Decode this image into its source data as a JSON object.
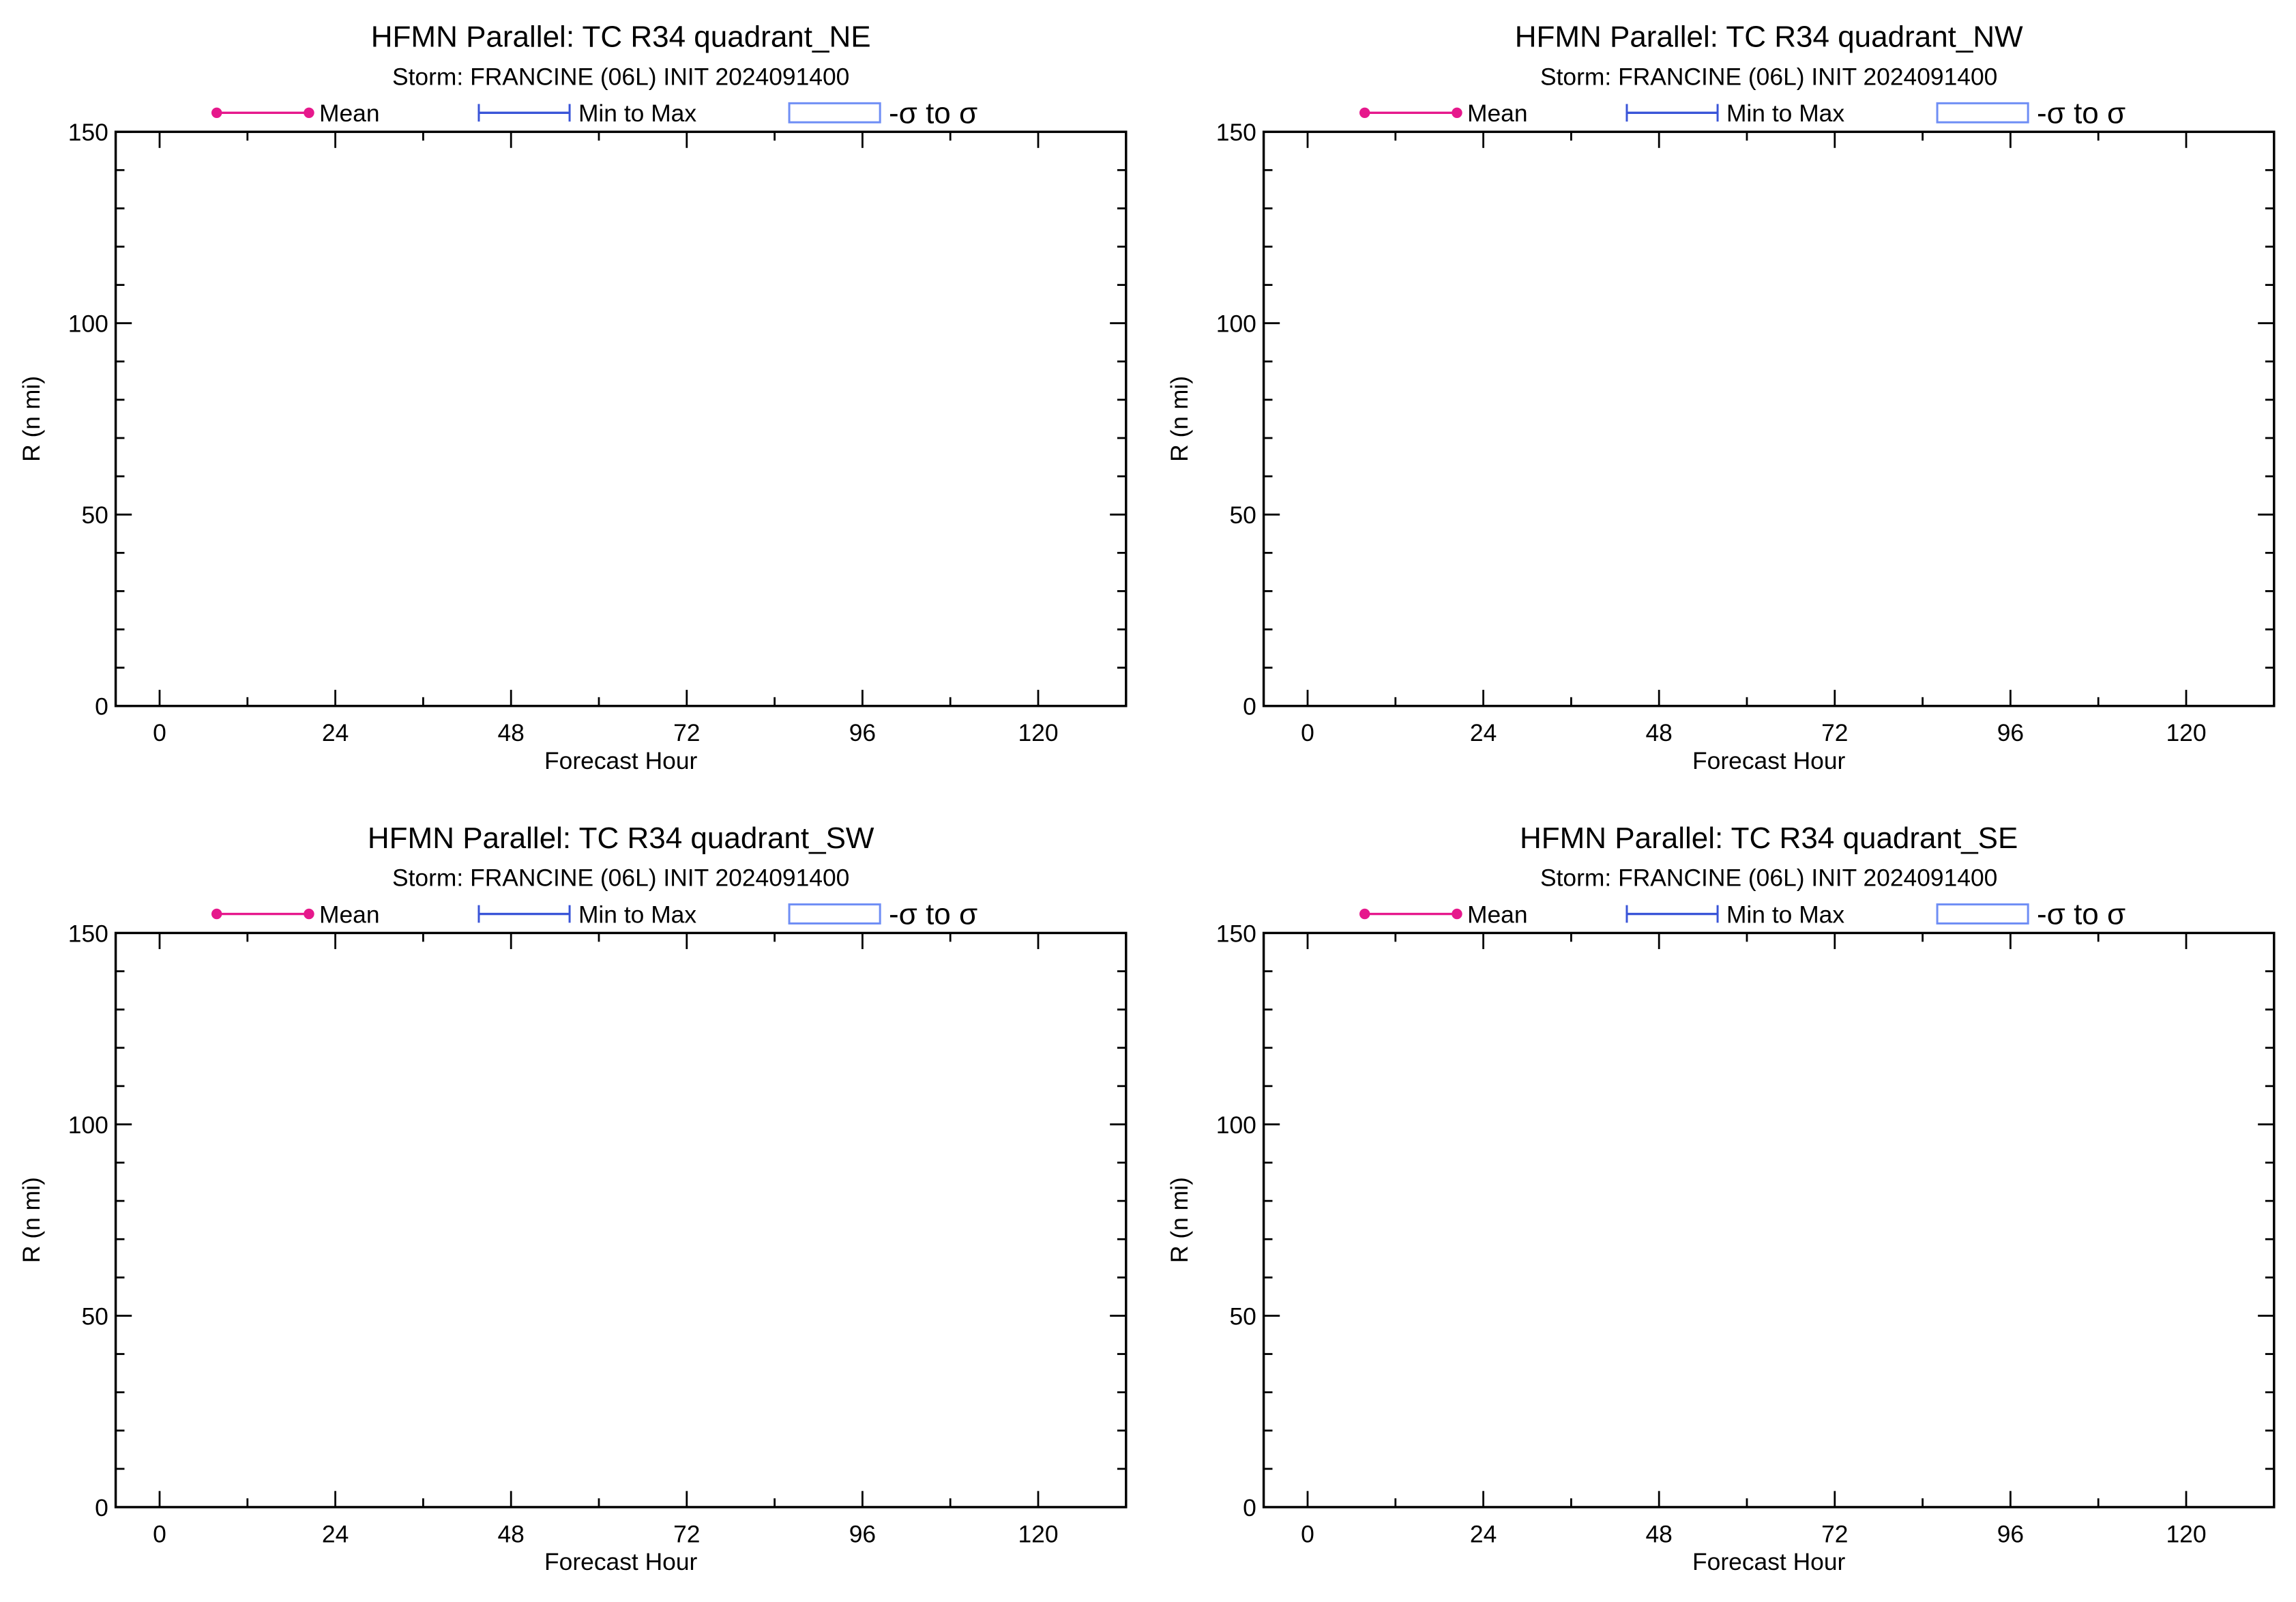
{
  "chart_data": [
    {
      "type": "line",
      "title": "HFMN Parallel: TC  R34 quadrant_NE",
      "subtitle": "Storm: FRANCINE (06L) INIT 2024091400",
      "xlabel": "Forecast Hour",
      "ylabel": "R (n mi)",
      "xlim": [
        -6,
        132
      ],
      "ylim": [
        0,
        150
      ],
      "xticks": [
        0,
        24,
        48,
        72,
        96,
        120
      ],
      "yticks": [
        0,
        50,
        100,
        150
      ],
      "legend": [
        {
          "label": "Mean",
          "style": "line-dots",
          "color": "#e6188c"
        },
        {
          "label": "Min to Max",
          "style": "errorbar",
          "color": "#3a55d8"
        },
        {
          "label": "-σ to σ",
          "style": "box",
          "color": "#6f8ef5"
        }
      ],
      "series": [],
      "grid": false
    },
    {
      "type": "line",
      "title": "HFMN Parallel: TC  R34 quadrant_NW",
      "subtitle": "Storm: FRANCINE (06L) INIT 2024091400",
      "xlabel": "Forecast Hour",
      "ylabel": "R (n mi)",
      "xlim": [
        -6,
        132
      ],
      "ylim": [
        0,
        150
      ],
      "xticks": [
        0,
        24,
        48,
        72,
        96,
        120
      ],
      "yticks": [
        0,
        50,
        100,
        150
      ],
      "legend": [
        {
          "label": "Mean",
          "style": "line-dots",
          "color": "#e6188c"
        },
        {
          "label": "Min to Max",
          "style": "errorbar",
          "color": "#3a55d8"
        },
        {
          "label": "-σ to σ",
          "style": "box",
          "color": "#6f8ef5"
        }
      ],
      "series": [],
      "grid": false
    },
    {
      "type": "line",
      "title": "HFMN Parallel: TC  R34 quadrant_SW",
      "subtitle": "Storm: FRANCINE (06L) INIT 2024091400",
      "xlabel": "Forecast Hour",
      "ylabel": "R (n mi)",
      "xlim": [
        -6,
        132
      ],
      "ylim": [
        0,
        150
      ],
      "xticks": [
        0,
        24,
        48,
        72,
        96,
        120
      ],
      "yticks": [
        0,
        50,
        100,
        150
      ],
      "legend": [
        {
          "label": "Mean",
          "style": "line-dots",
          "color": "#e6188c"
        },
        {
          "label": "Min to Max",
          "style": "errorbar",
          "color": "#3a55d8"
        },
        {
          "label": "-σ to σ",
          "style": "box",
          "color": "#6f8ef5"
        }
      ],
      "series": [],
      "grid": false
    },
    {
      "type": "line",
      "title": "HFMN Parallel: TC  R34 quadrant_SE",
      "subtitle": "Storm: FRANCINE (06L) INIT 2024091400",
      "xlabel": "Forecast Hour",
      "ylabel": "R (n mi)",
      "xlim": [
        -6,
        132
      ],
      "ylim": [
        0,
        150
      ],
      "xticks": [
        0,
        24,
        48,
        72,
        96,
        120
      ],
      "yticks": [
        0,
        50,
        100,
        150
      ],
      "legend": [
        {
          "label": "Mean",
          "style": "line-dots",
          "color": "#e6188c"
        },
        {
          "label": "Min to Max",
          "style": "errorbar",
          "color": "#3a55d8"
        },
        {
          "label": "-σ to σ",
          "style": "box",
          "color": "#6f8ef5"
        }
      ],
      "series": [],
      "grid": false
    }
  ]
}
